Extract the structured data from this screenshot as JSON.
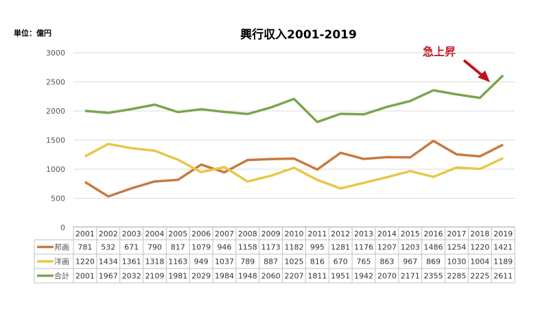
{
  "chart_data": {
    "type": "line",
    "title": "興行収入2001-2019",
    "unit_label": "単位：億円",
    "annotation": "急上昇",
    "ylim": [
      0,
      3000
    ],
    "yticks": [
      0,
      500,
      1000,
      1500,
      2000,
      2500,
      3000
    ],
    "grid": true,
    "legend": "table-bottom",
    "categories": [
      "2001",
      "2002",
      "2003",
      "2004",
      "2005",
      "2006",
      "2007",
      "2008",
      "2009",
      "2010",
      "2011",
      "2012",
      "2013",
      "2014",
      "2015",
      "2016",
      "2017",
      "2018",
      "2019"
    ],
    "series": [
      {
        "name": "邦画",
        "color": "#c8793f",
        "values": [
          781,
          532,
          671,
          790,
          817,
          1079,
          946,
          1158,
          1173,
          1182,
          995,
          1281,
          1176,
          1207,
          1203,
          1486,
          1254,
          1220,
          1421
        ]
      },
      {
        "name": "洋画",
        "color": "#e9c646",
        "values": [
          1220,
          1434,
          1361,
          1318,
          1163,
          949,
          1037,
          789,
          887,
          1025,
          816,
          670,
          765,
          863,
          967,
          869,
          1030,
          1004,
          1189
        ]
      },
      {
        "name": "合計",
        "color": "#78a650",
        "values": [
          2001,
          1967,
          2032,
          2109,
          1981,
          2029,
          1984,
          1948,
          2060,
          2207,
          1811,
          1951,
          1942,
          2070,
          2171,
          2355,
          2285,
          2225,
          2611
        ]
      }
    ],
    "annotation_color": "#c0141c"
  }
}
